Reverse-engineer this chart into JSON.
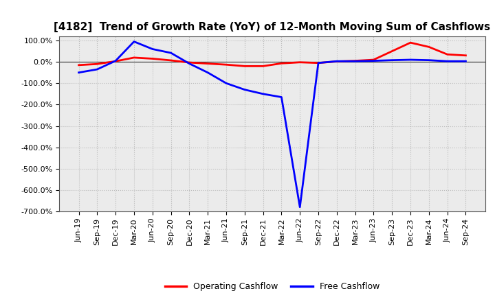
{
  "title": "[4182]  Trend of Growth Rate (YoY) of 12-Month Moving Sum of Cashflows",
  "x_labels": [
    "Jun-19",
    "Sep-19",
    "Dec-19",
    "Mar-20",
    "Jun-20",
    "Sep-20",
    "Dec-20",
    "Mar-21",
    "Jun-21",
    "Sep-21",
    "Dec-21",
    "Mar-22",
    "Jun-22",
    "Sep-22",
    "Dec-22",
    "Mar-23",
    "Jun-23",
    "Sep-23",
    "Dec-23",
    "Mar-24",
    "Jun-24",
    "Sep-24"
  ],
  "operating_cashflow": [
    -15,
    -10,
    3,
    20,
    15,
    7,
    -3,
    -8,
    -13,
    -20,
    -20,
    -7,
    -2,
    -5,
    2,
    5,
    10,
    50,
    90,
    70,
    35,
    30
  ],
  "free_cashflow": [
    -50,
    -35,
    5,
    95,
    60,
    42,
    -8,
    -50,
    -100,
    -130,
    -150,
    -165,
    -680,
    -5,
    3,
    3,
    5,
    8,
    10,
    8,
    3,
    3
  ],
  "ylim": [
    -700,
    120
  ],
  "yticks": [
    100,
    0,
    -100,
    -200,
    -300,
    -400,
    -500,
    -600,
    -700
  ],
  "operating_color": "#ff0000",
  "free_color": "#0000ff",
  "background_color": "#ffffff",
  "grid_color": "#bbbbbb",
  "plot_bg_color": "#ebebeb",
  "legend_labels": [
    "Operating Cashflow",
    "Free Cashflow"
  ],
  "title_fontsize": 11,
  "tick_fontsize": 8,
  "legend_fontsize": 9
}
